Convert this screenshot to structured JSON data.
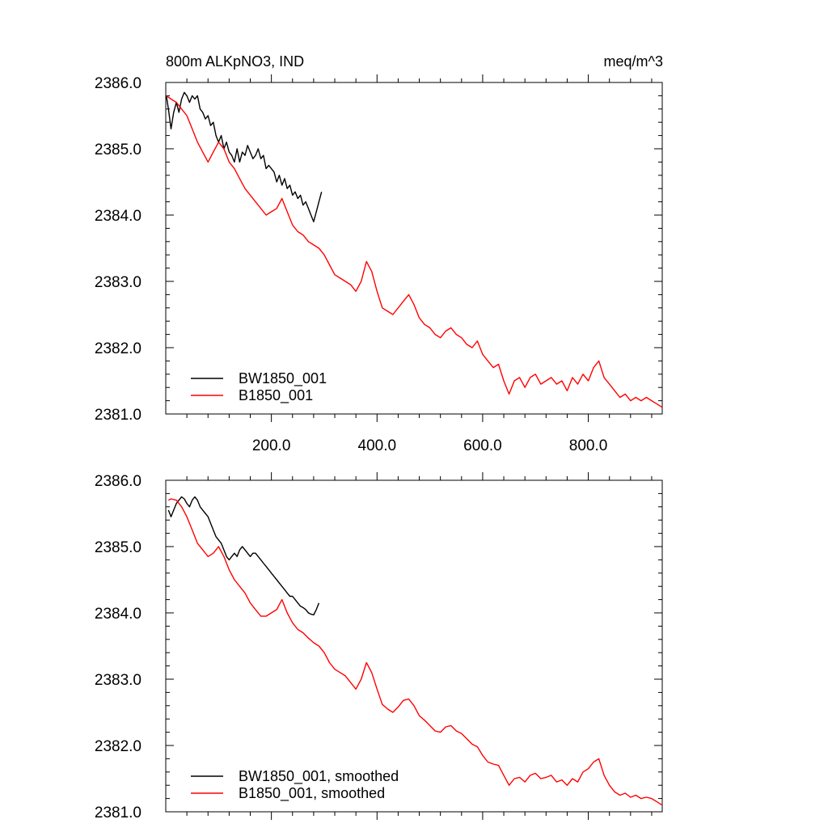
{
  "chart_data": [
    {
      "type": "line",
      "title": "800m ALKpNO3, IND",
      "units": "meq/m^3",
      "xlim": [
        0,
        940
      ],
      "ylim": [
        2381.0,
        2386.0
      ],
      "xticks": [
        200,
        400,
        600,
        800
      ],
      "xtick_labels": [
        "200.0",
        "400.0",
        "600.0",
        "800.0"
      ],
      "yticks": [
        2381,
        2382,
        2383,
        2384,
        2385,
        2386
      ],
      "ytick_labels": [
        "2381.0",
        "2382.0",
        "2383.0",
        "2384.0",
        "2385.0",
        "2386.0"
      ],
      "legend_position": "bottom-left",
      "series": [
        {
          "name": "BW1850_001",
          "color": "#000000",
          "x": [
            1,
            5,
            10,
            15,
            20,
            25,
            30,
            35,
            40,
            45,
            50,
            55,
            60,
            65,
            70,
            75,
            80,
            85,
            90,
            95,
            100,
            105,
            110,
            115,
            120,
            125,
            130,
            135,
            140,
            145,
            150,
            155,
            160,
            165,
            170,
            175,
            180,
            185,
            190,
            195,
            200,
            205,
            210,
            215,
            220,
            225,
            230,
            235,
            240,
            245,
            250,
            255,
            260,
            265,
            270,
            275,
            280,
            285,
            290,
            295
          ],
          "y": [
            2385.8,
            2385.6,
            2385.3,
            2385.55,
            2385.7,
            2385.55,
            2385.75,
            2385.85,
            2385.8,
            2385.7,
            2385.8,
            2385.75,
            2385.8,
            2385.6,
            2385.55,
            2385.45,
            2385.5,
            2385.35,
            2385.4,
            2385.2,
            2385.1,
            2385.2,
            2385.0,
            2385.1,
            2384.95,
            2384.9,
            2384.8,
            2385.0,
            2384.8,
            2384.95,
            2384.9,
            2385.05,
            2384.95,
            2384.85,
            2384.9,
            2385.0,
            2384.85,
            2384.9,
            2384.7,
            2384.75,
            2384.7,
            2384.65,
            2384.5,
            2384.6,
            2384.45,
            2384.55,
            2384.4,
            2384.45,
            2384.3,
            2384.35,
            2384.25,
            2384.3,
            2384.15,
            2384.2,
            2384.1,
            2384.0,
            2383.9,
            2384.05,
            2384.2,
            2384.35
          ]
        },
        {
          "name": "B1850_001",
          "color": "#ff0000",
          "x": [
            1,
            10,
            20,
            30,
            40,
            50,
            60,
            70,
            80,
            90,
            100,
            110,
            120,
            130,
            140,
            150,
            160,
            170,
            180,
            190,
            200,
            210,
            220,
            230,
            240,
            250,
            260,
            270,
            280,
            290,
            300,
            310,
            320,
            330,
            340,
            350,
            360,
            370,
            380,
            390,
            400,
            410,
            420,
            430,
            440,
            450,
            460,
            470,
            480,
            490,
            500,
            510,
            520,
            530,
            540,
            550,
            560,
            570,
            580,
            590,
            600,
            610,
            620,
            630,
            640,
            650,
            660,
            670,
            680,
            690,
            700,
            710,
            720,
            730,
            740,
            750,
            760,
            770,
            780,
            790,
            800,
            810,
            820,
            830,
            840,
            850,
            860,
            870,
            880,
            890,
            900,
            910,
            920,
            930,
            940
          ],
          "y": [
            2385.8,
            2385.75,
            2385.7,
            2385.6,
            2385.5,
            2385.3,
            2385.1,
            2384.95,
            2384.8,
            2384.95,
            2385.1,
            2385.0,
            2384.8,
            2384.7,
            2384.55,
            2384.4,
            2384.3,
            2384.2,
            2384.1,
            2384.0,
            2384.05,
            2384.1,
            2384.25,
            2384.05,
            2383.85,
            2383.75,
            2383.7,
            2383.6,
            2383.55,
            2383.5,
            2383.4,
            2383.25,
            2383.1,
            2383.05,
            2383.0,
            2382.95,
            2382.85,
            2383.0,
            2383.3,
            2383.15,
            2382.85,
            2382.6,
            2382.55,
            2382.5,
            2382.6,
            2382.7,
            2382.8,
            2382.65,
            2382.45,
            2382.35,
            2382.3,
            2382.2,
            2382.15,
            2382.25,
            2382.3,
            2382.2,
            2382.15,
            2382.05,
            2382.0,
            2382.1,
            2381.9,
            2381.8,
            2381.7,
            2381.75,
            2381.5,
            2381.3,
            2381.5,
            2381.55,
            2381.4,
            2381.55,
            2381.6,
            2381.45,
            2381.5,
            2381.55,
            2381.45,
            2381.5,
            2381.35,
            2381.55,
            2381.45,
            2381.6,
            2381.5,
            2381.7,
            2381.8,
            2381.55,
            2381.45,
            2381.35,
            2381.25,
            2381.3,
            2381.2,
            2381.25,
            2381.2,
            2381.25,
            2381.2,
            2381.15,
            2381.1
          ]
        }
      ]
    },
    {
      "type": "line",
      "xlim": [
        0,
        940
      ],
      "ylim": [
        2381.0,
        2386.0
      ],
      "xticks": [
        200,
        400,
        600,
        800
      ],
      "yticks": [
        2381,
        2382,
        2383,
        2384,
        2385,
        2386
      ],
      "ytick_labels": [
        "2381.0",
        "2382.0",
        "2383.0",
        "2384.0",
        "2385.0",
        "2386.0"
      ],
      "legend_position": "bottom-left",
      "series": [
        {
          "name": "BW1850_001, smoothed",
          "color": "#000000",
          "x": [
            5,
            10,
            15,
            20,
            25,
            30,
            35,
            40,
            45,
            50,
            55,
            60,
            65,
            70,
            75,
            80,
            85,
            90,
            95,
            100,
            105,
            110,
            115,
            120,
            125,
            130,
            135,
            140,
            145,
            150,
            155,
            160,
            165,
            170,
            175,
            180,
            185,
            190,
            195,
            200,
            205,
            210,
            215,
            220,
            225,
            230,
            235,
            240,
            245,
            250,
            255,
            260,
            265,
            270,
            275,
            280,
            285,
            290
          ],
          "y": [
            2385.55,
            2385.45,
            2385.55,
            2385.65,
            2385.7,
            2385.75,
            2385.72,
            2385.65,
            2385.6,
            2385.7,
            2385.75,
            2385.7,
            2385.6,
            2385.55,
            2385.5,
            2385.45,
            2385.35,
            2385.25,
            2385.15,
            2385.1,
            2385.05,
            2384.95,
            2384.85,
            2384.8,
            2384.85,
            2384.9,
            2384.85,
            2384.95,
            2385.0,
            2384.95,
            2384.9,
            2384.85,
            2384.9,
            2384.9,
            2384.85,
            2384.8,
            2384.75,
            2384.7,
            2384.65,
            2384.6,
            2384.55,
            2384.5,
            2384.45,
            2384.4,
            2384.35,
            2384.3,
            2384.25,
            2384.25,
            2384.2,
            2384.15,
            2384.1,
            2384.08,
            2384.05,
            2384.0,
            2383.98,
            2383.97,
            2384.05,
            2384.15
          ]
        },
        {
          "name": "B1850_001, smoothed",
          "color": "#ff0000",
          "x": [
            5,
            10,
            20,
            30,
            40,
            50,
            60,
            70,
            80,
            90,
            100,
            110,
            120,
            130,
            140,
            150,
            160,
            170,
            180,
            190,
            200,
            210,
            220,
            230,
            240,
            250,
            260,
            270,
            280,
            290,
            300,
            310,
            320,
            330,
            340,
            350,
            360,
            370,
            380,
            390,
            400,
            410,
            420,
            430,
            440,
            450,
            460,
            470,
            480,
            490,
            500,
            510,
            520,
            530,
            540,
            550,
            560,
            570,
            580,
            590,
            600,
            610,
            620,
            630,
            640,
            650,
            660,
            670,
            680,
            690,
            700,
            710,
            720,
            730,
            740,
            750,
            760,
            770,
            780,
            790,
            800,
            810,
            820,
            830,
            840,
            850,
            860,
            870,
            880,
            890,
            900,
            910,
            920,
            930,
            940
          ],
          "y": [
            2385.7,
            2385.72,
            2385.7,
            2385.6,
            2385.45,
            2385.25,
            2385.05,
            2384.95,
            2384.85,
            2384.9,
            2385.0,
            2384.85,
            2384.65,
            2384.5,
            2384.4,
            2384.3,
            2384.15,
            2384.05,
            2383.95,
            2383.95,
            2384.0,
            2384.05,
            2384.2,
            2384.0,
            2383.85,
            2383.75,
            2383.7,
            2383.62,
            2383.55,
            2383.5,
            2383.4,
            2383.25,
            2383.15,
            2383.1,
            2383.05,
            2382.95,
            2382.85,
            2383.0,
            2383.25,
            2383.1,
            2382.85,
            2382.62,
            2382.55,
            2382.5,
            2382.58,
            2382.68,
            2382.7,
            2382.6,
            2382.45,
            2382.38,
            2382.3,
            2382.22,
            2382.2,
            2382.28,
            2382.3,
            2382.22,
            2382.18,
            2382.1,
            2382.02,
            2381.98,
            2381.85,
            2381.75,
            2381.72,
            2381.7,
            2381.55,
            2381.4,
            2381.5,
            2381.52,
            2381.45,
            2381.55,
            2381.58,
            2381.5,
            2381.52,
            2381.55,
            2381.45,
            2381.48,
            2381.4,
            2381.5,
            2381.45,
            2381.6,
            2381.65,
            2381.75,
            2381.8,
            2381.55,
            2381.4,
            2381.3,
            2381.25,
            2381.28,
            2381.22,
            2381.25,
            2381.2,
            2381.22,
            2381.2,
            2381.15,
            2381.1
          ]
        }
      ]
    }
  ]
}
